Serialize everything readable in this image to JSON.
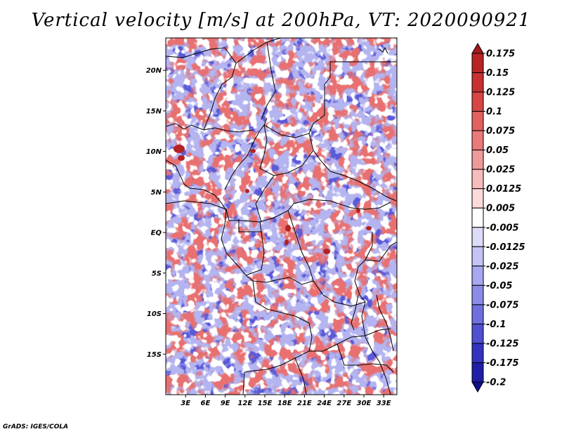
{
  "title": "Vertical velocity [m/s] at 200hPa, VT: 2020090921",
  "credit": "GrADS: IGES/COLA",
  "map": {
    "lon_range": [
      0,
      35
    ],
    "lat_range": [
      -20,
      24
    ],
    "lat_ticks": [
      {
        "value": 20,
        "label": "20N"
      },
      {
        "value": 15,
        "label": "15N"
      },
      {
        "value": 10,
        "label": "10N"
      },
      {
        "value": 5,
        "label": "5N"
      },
      {
        "value": 0,
        "label": "EQ"
      },
      {
        "value": -5,
        "label": "5S"
      },
      {
        "value": -10,
        "label": "10S"
      },
      {
        "value": -15,
        "label": "15S"
      }
    ],
    "lon_ticks": [
      {
        "value": 3,
        "label": "3E"
      },
      {
        "value": 6,
        "label": "6E"
      },
      {
        "value": 9,
        "label": "9E"
      },
      {
        "value": 12,
        "label": "12E"
      },
      {
        "value": 15,
        "label": "15E"
      },
      {
        "value": 18,
        "label": "18E"
      },
      {
        "value": 21,
        "label": "21E"
      },
      {
        "value": 24,
        "label": "24E"
      },
      {
        "value": 27,
        "label": "27E"
      },
      {
        "value": 30,
        "label": "30E"
      },
      {
        "value": 33,
        "label": "33E"
      }
    ]
  },
  "colorbar": {
    "labels": [
      "0.175",
      "0.15",
      "0.125",
      "0.1",
      "0.075",
      "0.05",
      "0.025",
      "0.0125",
      "0.005",
      "-0.005",
      "-0.0125",
      "-0.025",
      "-0.05",
      "-0.075",
      "-0.1",
      "-0.125",
      "-0.175",
      "-0.2"
    ],
    "colors": [
      "#a51a1a",
      "#b82424",
      "#c83030",
      "#d84545",
      "#e26060",
      "#e87a7a",
      "#ef9a9a",
      "#f6bcbc",
      "#fcdada",
      "#ffffff",
      "#dcdcf8",
      "#c3c3f5",
      "#a8a8f0",
      "#8c8ce8",
      "#6f6fe0",
      "#5050d2",
      "#3333c0",
      "#1e1ea8",
      "#10108c"
    ]
  }
}
